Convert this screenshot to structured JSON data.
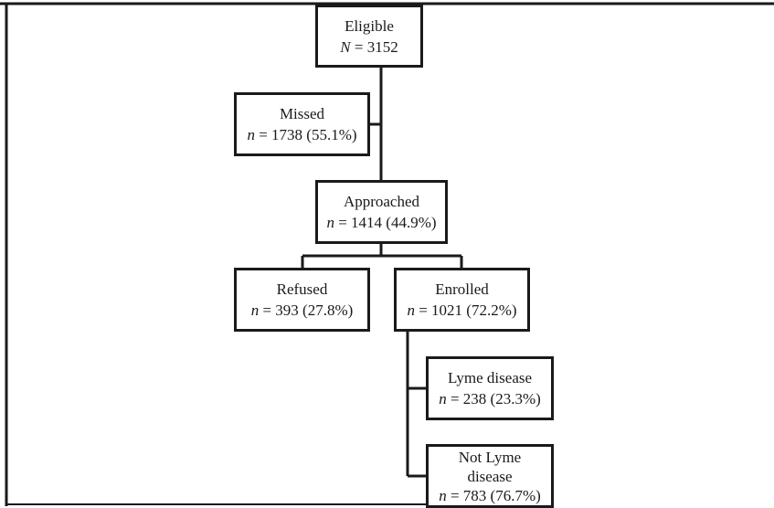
{
  "flowchart": {
    "eligible": {
      "label": "Eligible",
      "symbol": "N",
      "count": "= 3152"
    },
    "missed": {
      "label": "Missed",
      "symbol": "n",
      "count": "= 1738 (55.1%)"
    },
    "approached": {
      "label": "Approached",
      "symbol": "n",
      "count": "= 1414 (44.9%)"
    },
    "refused": {
      "label": "Refused",
      "symbol": "n",
      "count": "= 393 (27.8%)"
    },
    "enrolled": {
      "label": "Enrolled",
      "symbol": "n",
      "count": "= 1021 (72.2%)"
    },
    "lyme": {
      "label": "Lyme disease",
      "symbol": "n",
      "count": "= 238 (23.3%)"
    },
    "not_lyme": {
      "label": "Not Lyme disease",
      "symbol": "n",
      "count": "= 783 (76.7%)"
    }
  },
  "colors": {
    "line": "#1a1a1a",
    "background": "#ffffff"
  }
}
